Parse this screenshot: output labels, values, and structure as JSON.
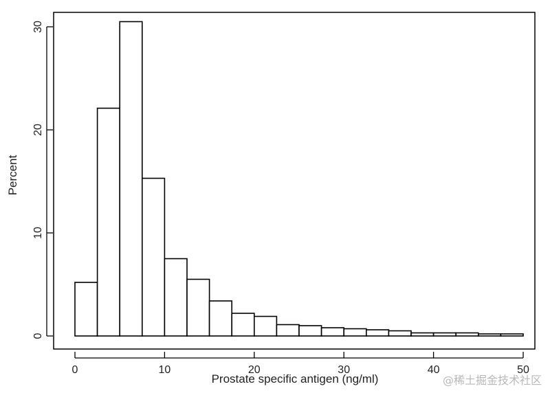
{
  "chart_data": {
    "type": "bar",
    "title": "",
    "xlabel": "Prostate specific antigen (ng/ml)",
    "ylabel": "Percent",
    "bin_width": 2.5,
    "bin_starts": [
      0,
      2.5,
      5,
      7.5,
      10,
      12.5,
      15,
      17.5,
      20,
      22.5,
      25,
      27.5,
      30,
      32.5,
      35,
      37.5,
      40,
      42.5,
      45,
      47.5
    ],
    "values": [
      5.2,
      22.1,
      30.5,
      15.3,
      7.5,
      5.5,
      3.4,
      2.2,
      1.9,
      1.1,
      1.0,
      0.8,
      0.7,
      0.6,
      0.5,
      0.3,
      0.3,
      0.3,
      0.2,
      0.2
    ],
    "xlim": [
      0,
      50
    ],
    "ylim": [
      0,
      30
    ],
    "xticks": [
      0,
      10,
      20,
      30,
      40,
      50
    ],
    "yticks": [
      0,
      10,
      20,
      30
    ],
    "grid": false
  },
  "watermark": "@稀土掘金技术社区"
}
